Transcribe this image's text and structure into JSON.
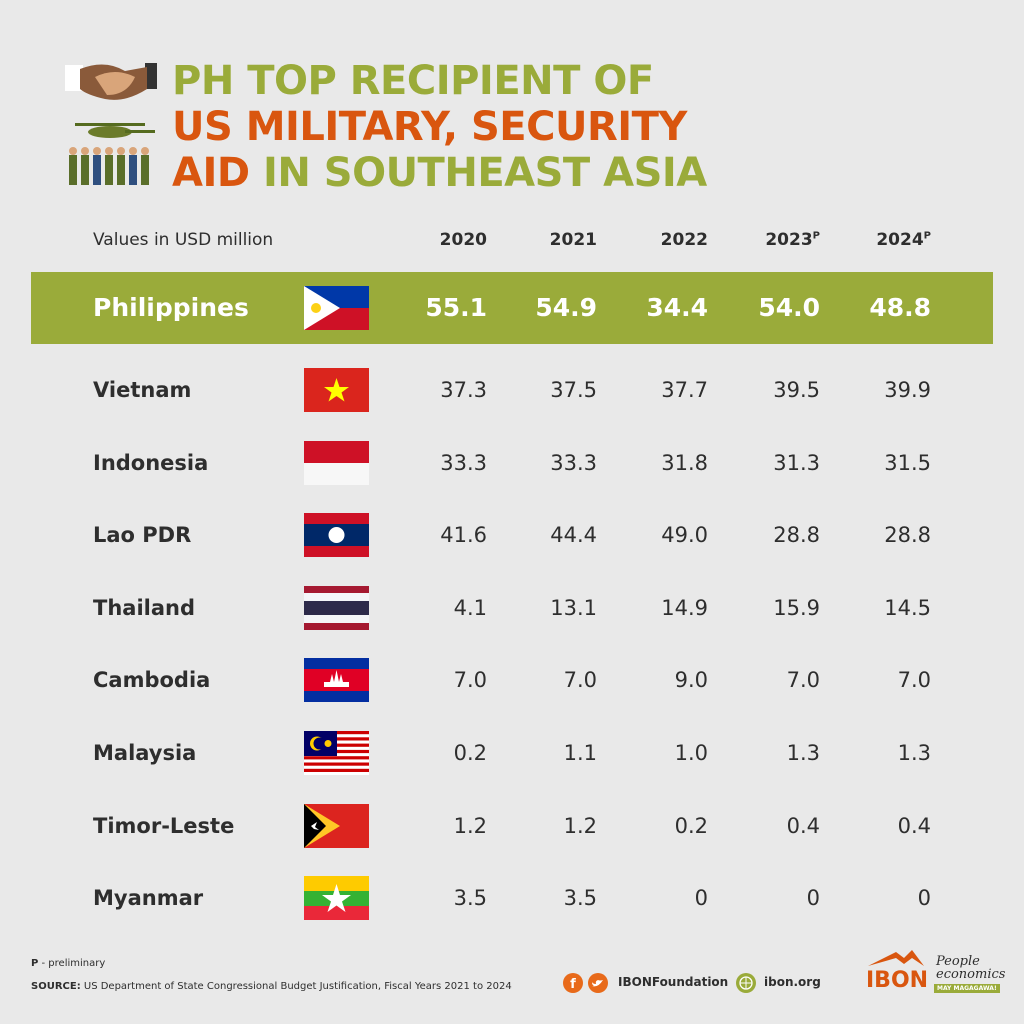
{
  "title": {
    "lines": [
      [
        {
          "text": "PH TOP RECIPIENT OF",
          "tone": "green"
        }
      ],
      [
        {
          "text": "US MILITARY, SECURITY",
          "tone": "orange"
        }
      ],
      [
        {
          "text": "AID",
          "tone": "orange"
        },
        {
          "text": " IN SOUTHEAST ASIA",
          "tone": "green"
        }
      ]
    ]
  },
  "table": {
    "unit_note": "Values in USD million",
    "columns": [
      {
        "year": "2020"
      },
      {
        "year": "2021"
      },
      {
        "year": "2022"
      },
      {
        "year": "2023",
        "mark": "P"
      },
      {
        "year": "2024",
        "mark": "P"
      }
    ],
    "rows": [
      {
        "country": "Philippines",
        "highlight": true,
        "values": [
          "55.1",
          "54.9",
          "34.4",
          "54.0",
          "48.8"
        ]
      },
      {
        "country": "Vietnam",
        "values": [
          "37.3",
          "37.5",
          "37.7",
          "39.5",
          "39.9"
        ]
      },
      {
        "country": "Indonesia",
        "values": [
          "33.3",
          "33.3",
          "31.8",
          "31.3",
          "31.5"
        ]
      },
      {
        "country": "Lao PDR",
        "values": [
          "41.6",
          "44.4",
          "49.0",
          "28.8",
          "28.8"
        ]
      },
      {
        "country": "Thailand",
        "values": [
          "4.1",
          "13.1",
          "14.9",
          "15.9",
          "14.5"
        ]
      },
      {
        "country": "Cambodia",
        "values": [
          "7.0",
          "7.0",
          "9.0",
          "7.0",
          "7.0"
        ]
      },
      {
        "country": "Malaysia",
        "values": [
          "0.2",
          "1.1",
          "1.0",
          "1.3",
          "1.3"
        ]
      },
      {
        "country": "Timor-Leste",
        "values": [
          "1.2",
          "1.2",
          "0.2",
          "0.4",
          "0.4"
        ]
      },
      {
        "country": "Myanmar",
        "values": [
          "3.5",
          "3.5",
          "0",
          "0",
          "0"
        ]
      }
    ]
  },
  "footer": {
    "note": {
      "key": "P",
      "text": " - preliminary"
    },
    "source": {
      "label": "SOURCE:",
      "text": " US Department of State Congressional Budget Justification, Fiscal Years 2021 to 2024"
    },
    "social": "IBONFoundation",
    "web": "ibon.org",
    "brand": "IBON",
    "tagline": "People economics",
    "slogan": "MAY MAGAGAWA!"
  }
}
